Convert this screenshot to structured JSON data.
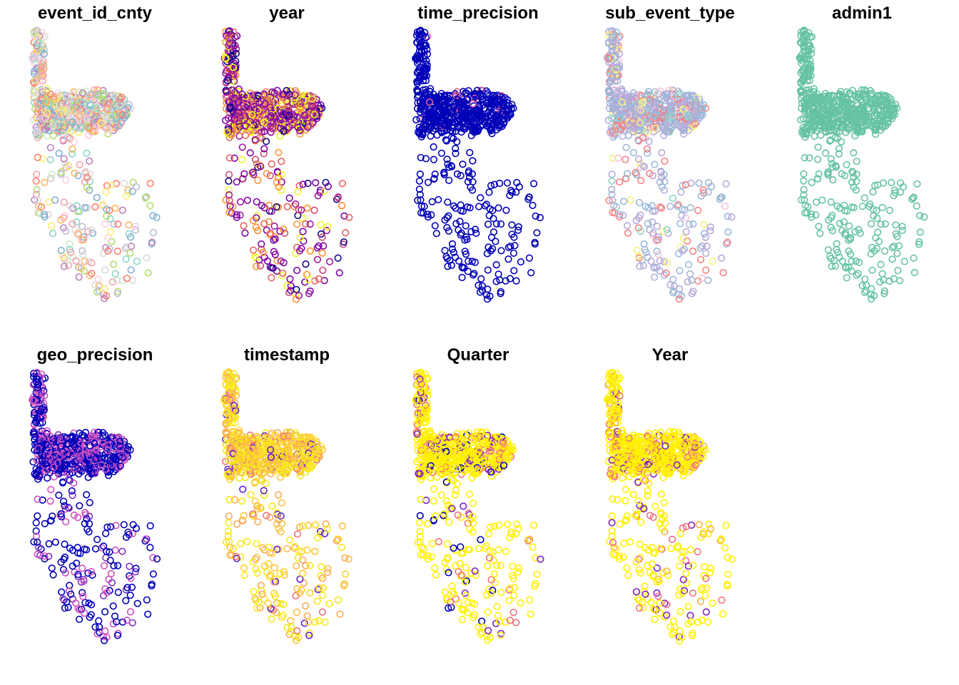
{
  "chart_data": [
    {
      "type": "scatter",
      "title": "event_id_cnty",
      "palette": [
        "#8dd3c7",
        "#f4a3a8",
        "#bebada",
        "#fb8072",
        "#80b1d3",
        "#fdb462",
        "#b3de69",
        "#fccde5",
        "#d9d9d9",
        "#bc80bd",
        "#ccebc5",
        "#ffed6f"
      ],
      "weights": [
        1,
        1,
        1,
        1,
        1,
        1,
        1,
        1,
        1,
        1,
        1,
        1
      ]
    },
    {
      "type": "scatter",
      "title": "year",
      "palette": [
        "#0d0887",
        "#7e03a8",
        "#cc4778",
        "#f89540",
        "#f0f921",
        "#fb8f2a",
        "#e16462",
        "#9c179e"
      ],
      "weights": [
        2,
        5,
        2,
        1,
        3,
        2,
        2,
        3
      ]
    },
    {
      "type": "scatter",
      "title": "time_precision",
      "palette": [
        "#0000b8",
        "#e0609a"
      ],
      "weights": [
        30,
        1
      ]
    },
    {
      "type": "scatter",
      "title": "sub_event_type",
      "palette": [
        "#9ab8d8",
        "#b8a8d8",
        "#f48080",
        "#f4f080",
        "#8dd3c7",
        "#f8c0d8",
        "#b0b0e0"
      ],
      "weights": [
        5,
        4,
        2,
        1,
        1,
        1,
        2
      ]
    },
    {
      "type": "scatter",
      "title": "admin1",
      "palette": [
        "#66c2a5"
      ],
      "weights": [
        1
      ]
    },
    {
      "type": "scatter",
      "title": "geo_precision",
      "palette": [
        "#0000b8",
        "#d04ec0",
        "#8030c0"
      ],
      "weights": [
        6,
        3,
        1
      ]
    },
    {
      "type": "scatter",
      "title": "timestamp",
      "palette": [
        "#f8e81a",
        "#fbc040",
        "#fda858",
        "#f07080",
        "#6020d0",
        "#ffd028"
      ],
      "weights": [
        7,
        3,
        2,
        1,
        1,
        2
      ]
    },
    {
      "type": "scatter",
      "title": "Quarter",
      "palette": [
        "#fff000",
        "#f07080",
        "#8020c0",
        "#0000b8"
      ],
      "weights": [
        14,
        2,
        1,
        1
      ]
    },
    {
      "type": "scatter",
      "title": "Year",
      "palette": [
        "#fff000",
        "#f07080",
        "#8020c0",
        "#fbb040"
      ],
      "weights": [
        14,
        2,
        1,
        1
      ]
    }
  ]
}
